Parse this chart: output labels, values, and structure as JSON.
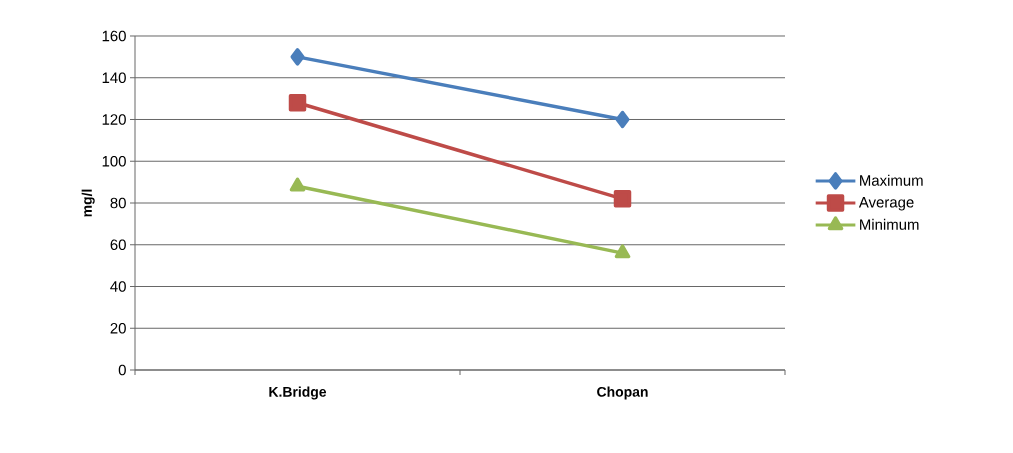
{
  "chart_data": {
    "type": "line",
    "ylabel": "mg/l",
    "categories": [
      "K.Bridge",
      "Chopan"
    ],
    "series": [
      {
        "name": "Maximum",
        "color": "#4a7ebb",
        "values": [
          150,
          120
        ],
        "marker": "diamond"
      },
      {
        "name": "Average",
        "color": "#be4b48",
        "values": [
          128,
          82
        ],
        "marker": "square"
      },
      {
        "name": "Minimum",
        "color": "#98b954",
        "values": [
          88,
          56
        ],
        "marker": "triangle"
      }
    ],
    "ylim": [
      0,
      160
    ],
    "yticks": [
      0,
      20,
      40,
      60,
      80,
      100,
      120,
      140,
      160
    ],
    "grid": "y",
    "legend": "right",
    "line_style": "solid"
  }
}
